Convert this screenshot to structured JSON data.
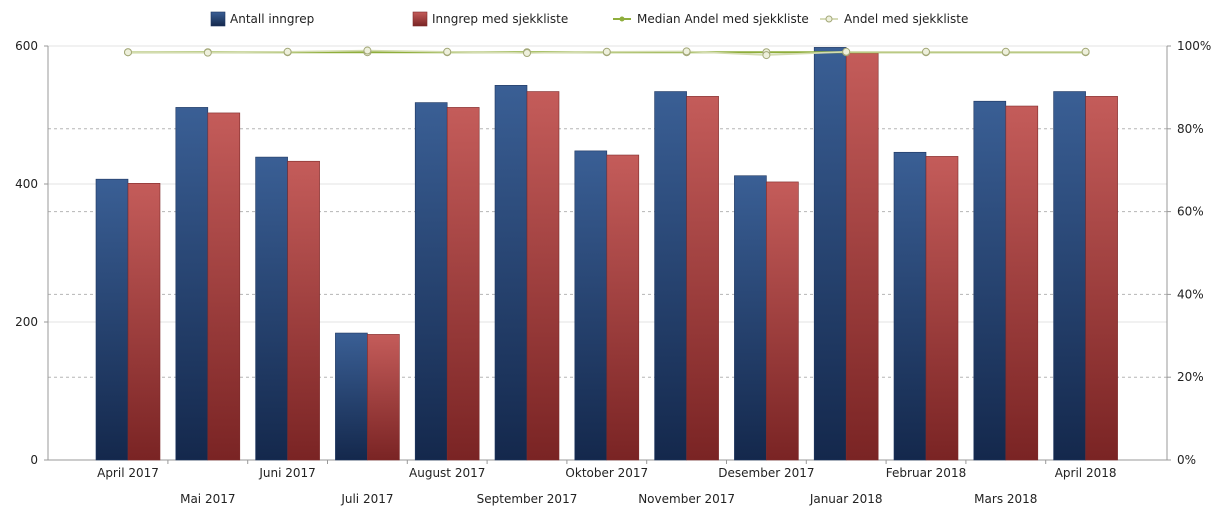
{
  "chart_data": {
    "type": "bar",
    "categories": [
      "April 2017",
      "Mai 2017",
      "Juni 2017",
      "Juli 2017",
      "August 2017",
      "September 2017",
      "Oktober 2017",
      "November 2017",
      "Desember 2017",
      "Januar 2018",
      "Februar 2018",
      "Mars 2018",
      "April 2018"
    ],
    "series": [
      {
        "name": "Antall inngrep",
        "type": "bar",
        "axis": "left",
        "color": "#2e4f82",
        "values": [
          407,
          511,
          439,
          184,
          518,
          543,
          448,
          534,
          412,
          598,
          446,
          520,
          534
        ]
      },
      {
        "name": "Inngrep med sjekkliste",
        "type": "bar",
        "axis": "left",
        "color": "#b84c4c",
        "values": [
          401,
          503,
          433,
          182,
          511,
          534,
          442,
          527,
          403,
          590,
          440,
          513,
          527
        ]
      },
      {
        "name": "Median Andel med sjekkliste",
        "type": "line",
        "axis": "right",
        "color": "#8fae3c",
        "values": [
          98.5,
          98.5,
          98.5,
          98.5,
          98.5,
          98.5,
          98.5,
          98.5,
          98.5,
          98.5,
          98.5,
          98.5,
          98.5
        ]
      },
      {
        "name": "Andel med sjekkliste",
        "type": "line",
        "axis": "right",
        "color": "#d4dcb0",
        "values": [
          98.5,
          98.4,
          98.6,
          98.9,
          98.6,
          98.3,
          98.6,
          98.7,
          97.8,
          98.6,
          98.6,
          98.6,
          98.6
        ]
      }
    ],
    "y_left": {
      "ylim": [
        0,
        600
      ],
      "ticks": [
        0,
        200,
        400,
        600
      ]
    },
    "y_right": {
      "ylim": [
        0,
        100
      ],
      "ticks": [
        0,
        20,
        40,
        60,
        80,
        100
      ],
      "tick_labels": [
        "0%",
        "20%",
        "40%",
        "60%",
        "80%",
        "100%"
      ]
    },
    "grid": true,
    "legend_position": "top"
  }
}
